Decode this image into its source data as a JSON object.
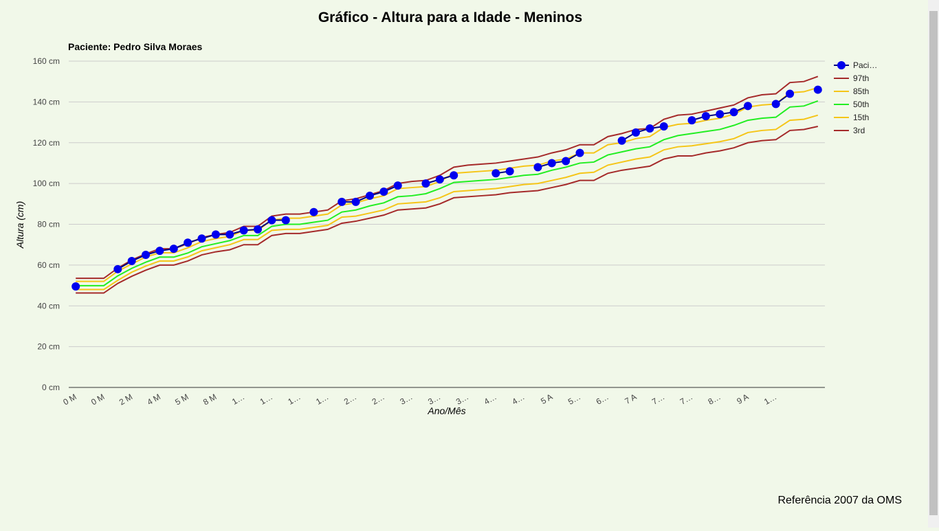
{
  "chart_data": {
    "type": "line",
    "title": "Gráfico - Altura para a Idade - Meninos",
    "subtitle": "Paciente: Pedro Silva Moraes",
    "x_label": "Ano/Mês",
    "y_label": "Altura (cm)",
    "annotation": "Referência 2007 da OMS",
    "grid": true,
    "legend": "right",
    "categories": [
      "0 M",
      null,
      "0 M",
      null,
      "2 M",
      null,
      "4 M",
      null,
      "5 M",
      null,
      "8 M",
      null,
      "1…",
      null,
      "1…",
      null,
      "1…",
      null,
      "1…",
      null,
      "2…",
      null,
      "2…",
      null,
      "3…",
      null,
      "3…",
      null,
      "3…",
      null,
      "4…",
      null,
      "4…",
      null,
      "5 A",
      null,
      "5…",
      null,
      "6…",
      null,
      "7 A",
      null,
      "7…",
      null,
      "7…",
      null,
      "8…",
      null,
      "9 A",
      null,
      "1…",
      null,
      null,
      null
    ],
    "ylim": [
      0,
      160
    ],
    "yticks": [
      {
        "value": 0,
        "label": "0 cm"
      },
      {
        "value": 20,
        "label": "20 cm"
      },
      {
        "value": 40,
        "label": "40 cm"
      },
      {
        "value": 60,
        "label": "60 cm"
      },
      {
        "value": 80,
        "label": "80 cm"
      },
      {
        "value": 100,
        "label": "100 cm"
      },
      {
        "value": 120,
        "label": "120 cm"
      },
      {
        "value": 140,
        "label": "140 cm"
      },
      {
        "value": 160,
        "label": "160 cm"
      }
    ],
    "series": [
      {
        "name": "Paci…",
        "color": "#0000ee",
        "markers": true,
        "values": [
          49.5,
          null,
          null,
          58,
          62,
          65,
          67,
          68,
          71,
          73,
          75,
          75,
          77,
          77.5,
          82,
          82,
          null,
          86,
          null,
          91,
          91,
          94,
          96,
          99,
          null,
          100,
          102,
          104,
          null,
          null,
          105,
          106,
          null,
          108,
          110,
          111,
          115,
          null,
          null,
          121,
          125,
          127,
          128,
          null,
          131,
          133,
          134,
          135,
          138,
          null,
          139,
          144,
          null,
          146
        ]
      },
      {
        "name": "97th",
        "color": "#a52a2a",
        "values": [
          53.5,
          53.5,
          53.5,
          58.5,
          62.5,
          65.5,
          68,
          68,
          70.5,
          73.5,
          75,
          76,
          79,
          79,
          84,
          85,
          85,
          86,
          87,
          91.5,
          92.5,
          94.5,
          96.5,
          100,
          101,
          101.5,
          104,
          108,
          109,
          109.5,
          110,
          111,
          112,
          113,
          115,
          116.5,
          119,
          119,
          123,
          124.5,
          126.5,
          127,
          131.5,
          133.5,
          134,
          135.5,
          137,
          138.5,
          142,
          143.5,
          144,
          149.5,
          150,
          152.5
        ]
      },
      {
        "name": "85th",
        "color": "#f5c518",
        "values": [
          52,
          52,
          52,
          57,
          60.5,
          64,
          66,
          66,
          68.5,
          71.5,
          73,
          74,
          77,
          77,
          82,
          83,
          83,
          84,
          85,
          89.5,
          90.5,
          92.5,
          94,
          97.5,
          98,
          98.5,
          101,
          105,
          105.5,
          106,
          106.5,
          107.5,
          108.5,
          109,
          111,
          112,
          115,
          115,
          119,
          120,
          122,
          123,
          127.5,
          129,
          129.5,
          131,
          132,
          134,
          137.5,
          138.5,
          139,
          144.5,
          145,
          147
        ]
      },
      {
        "name": "50th",
        "color": "#22ee22",
        "values": [
          49.9,
          49.9,
          49.9,
          54.7,
          58.4,
          61.4,
          63.9,
          63.9,
          65.9,
          69,
          70.5,
          72,
          74.5,
          74.5,
          79,
          80,
          80,
          81,
          82,
          86,
          87,
          89,
          90.5,
          93.5,
          94,
          95,
          97.5,
          100.5,
          101,
          101.5,
          102,
          103,
          104,
          104.5,
          106.5,
          108,
          110,
          110.5,
          114,
          115.5,
          117,
          118,
          121.5,
          123.5,
          124.5,
          125.5,
          126.5,
          128.5,
          131,
          132,
          132.5,
          137.5,
          138,
          140.5
        ]
      },
      {
        "name": "15th",
        "color": "#f5c518",
        "values": [
          48,
          48,
          48,
          52.5,
          56.5,
          59.5,
          62,
          62,
          64,
          67,
          68.5,
          70,
          72.5,
          72.5,
          77,
          77.5,
          77.5,
          78.5,
          79.5,
          83.5,
          84,
          85.5,
          87,
          90,
          90.5,
          91,
          93,
          96,
          96.5,
          97,
          97.5,
          98.5,
          99.5,
          100,
          101.5,
          103,
          105,
          105.5,
          109,
          110.5,
          112,
          113,
          116.5,
          118,
          118.5,
          119.5,
          120.5,
          122,
          125,
          126,
          126.5,
          131,
          131.5,
          133.5
        ]
      },
      {
        "name": "3rd",
        "color": "#a52a2a",
        "values": [
          46.3,
          46.3,
          46.3,
          51,
          54.5,
          57.5,
          60,
          60,
          62,
          65,
          66.5,
          67.5,
          70,
          70,
          74.5,
          75.5,
          75.5,
          76.5,
          77.5,
          80.5,
          81.5,
          83,
          84.5,
          87,
          87.5,
          88,
          90,
          93,
          93.5,
          94,
          94.5,
          95.5,
          96,
          96.5,
          98,
          99.5,
          101.5,
          101.5,
          105,
          106.5,
          107.5,
          108.5,
          112,
          113.5,
          113.5,
          115,
          116,
          117.5,
          120,
          121,
          121.5,
          126,
          126.5,
          128
        ]
      }
    ]
  }
}
